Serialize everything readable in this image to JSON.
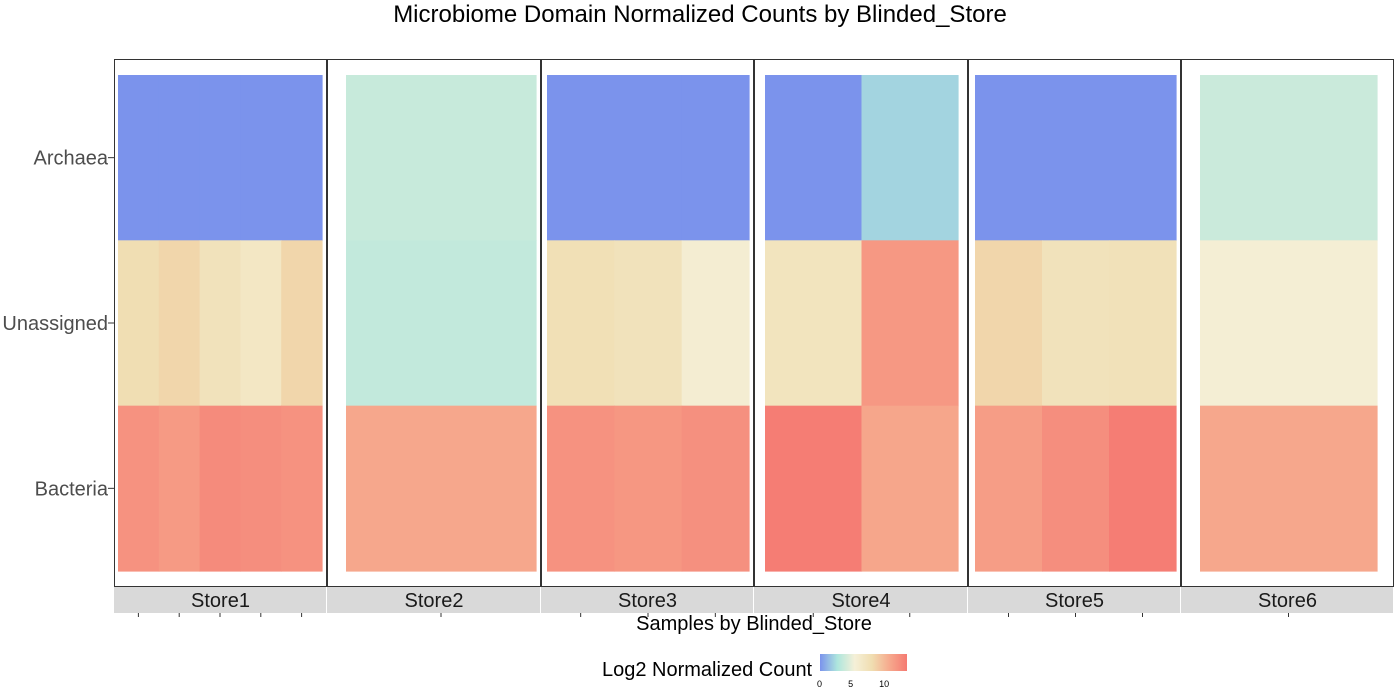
{
  "chart_data": {
    "type": "heatmap",
    "title": "Microbiome Domain Normalized Counts by Blinded_Store",
    "xlabel": "Samples by Blinded_Store",
    "ylabel": "",
    "rows": [
      "Archaea",
      "Unassigned",
      "Bacteria"
    ],
    "legend": {
      "title": "Log2 Normalized Count",
      "ticks": [
        "0",
        "5",
        "10"
      ],
      "min": 0,
      "max": 14,
      "colors": [
        "#7b93ec",
        "#aee6dd",
        "#f5f0d8",
        "#f0ddb0",
        "#f6a98d",
        "#f57a72"
      ]
    },
    "facets": [
      {
        "label": "Store1",
        "samples": 5,
        "values": {
          "Archaea": [
            0,
            0,
            0,
            0,
            0
          ],
          "Unassigned": [
            8.2,
            8.8,
            7.6,
            7.0,
            8.8
          ],
          "Bacteria": [
            12.6,
            12.1,
            13.0,
            12.8,
            12.6
          ]
        }
      },
      {
        "label": "Store2",
        "samples": 1,
        "values": {
          "Archaea": [
            3.8
          ],
          "Unassigned": [
            3.6
          ],
          "Bacteria": [
            11.3
          ]
        }
      },
      {
        "label": "Store3",
        "samples": 3,
        "values": {
          "Archaea": [
            0,
            0,
            0
          ],
          "Unassigned": [
            8.0,
            7.6,
            6.0
          ],
          "Bacteria": [
            12.6,
            12.3,
            12.7
          ]
        }
      },
      {
        "label": "Store4",
        "samples": 2,
        "values": {
          "Archaea": [
            0,
            2.2
          ],
          "Unassigned": [
            7.4,
            12.2
          ],
          "Bacteria": [
            13.8,
            11.4
          ]
        }
      },
      {
        "label": "Store5",
        "samples": 3,
        "values": {
          "Archaea": [
            0,
            0,
            0
          ],
          "Unassigned": [
            8.8,
            7.6,
            7.8
          ],
          "Bacteria": [
            11.9,
            12.8,
            13.8
          ]
        }
      },
      {
        "label": "Store6",
        "samples": 1,
        "values": {
          "Archaea": [
            3.9
          ],
          "Unassigned": [
            5.9
          ],
          "Bacteria": [
            11.3
          ]
        }
      }
    ]
  }
}
